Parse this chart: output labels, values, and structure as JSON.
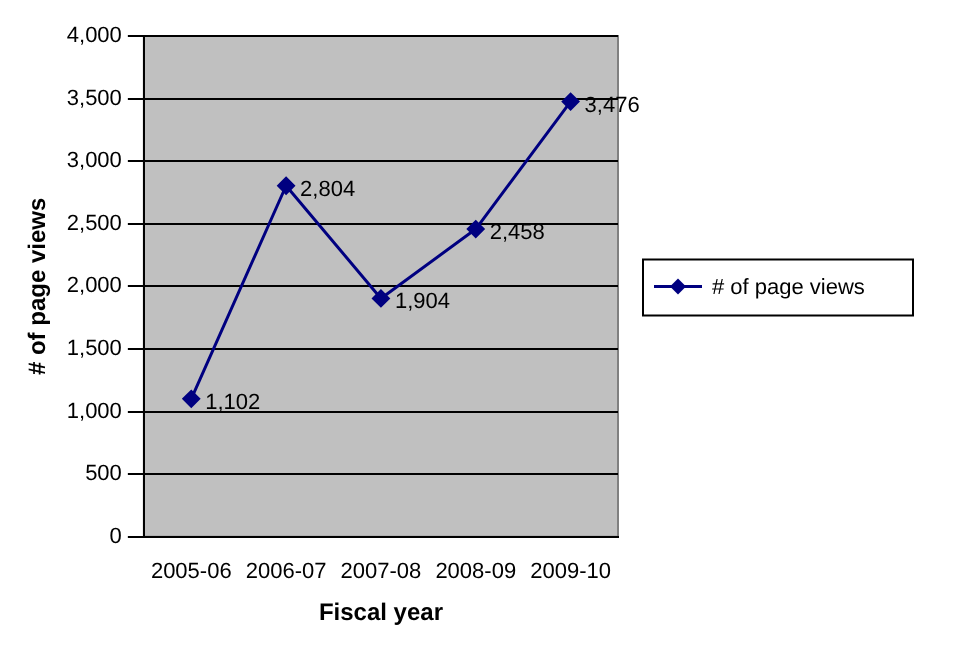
{
  "chart_data": {
    "type": "line",
    "xlabel": "Fiscal year",
    "ylabel": "# of page views",
    "categories": [
      "2005-06",
      "2006-07",
      "2007-08",
      "2008-09",
      "2009-10"
    ],
    "series": [
      {
        "name": "# of page views",
        "color": "#000080",
        "values": [
          1102,
          2804,
          1904,
          2458,
          3476
        ],
        "value_labels": [
          "1,102",
          "2,804",
          "1,904",
          "2,458",
          "3,476"
        ]
      }
    ],
    "ylim": [
      0,
      4000
    ],
    "yticks": [
      0,
      {
        "value": 500,
        "label": "500"
      },
      {
        "value": 1000,
        "label": "1,000"
      },
      {
        "value": 1500,
        "label": "1,500"
      },
      {
        "value": 2000,
        "label": "2,000"
      },
      {
        "value": 2500,
        "label": "2,500"
      },
      {
        "value": 3000,
        "label": "3,000"
      },
      {
        "value": 3500,
        "label": "3,500"
      },
      {
        "value": 4000,
        "label": "4,000"
      }
    ],
    "grid": "y",
    "legend": "right",
    "marker": "diamond",
    "line_style": "solid"
  }
}
